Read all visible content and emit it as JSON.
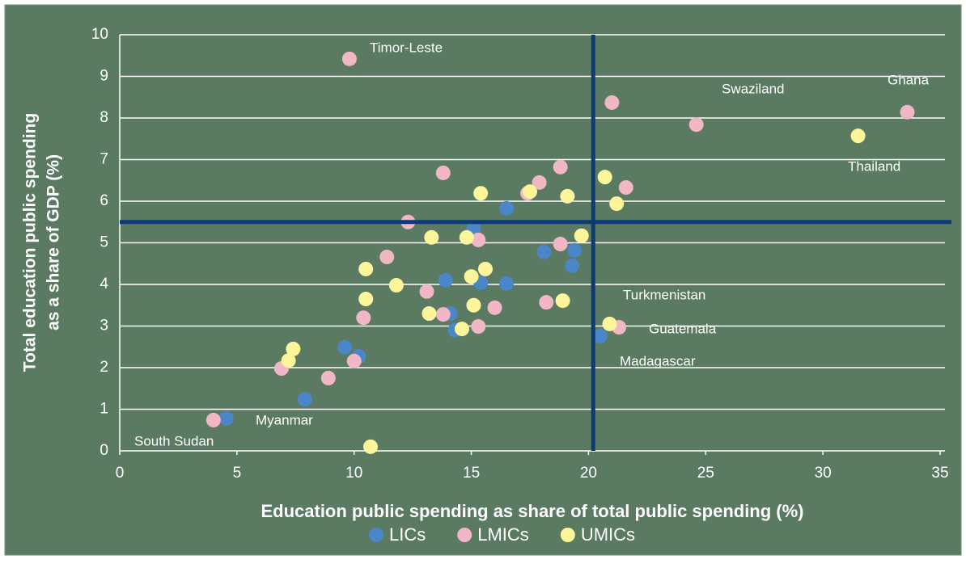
{
  "chart_data": {
    "type": "scatter",
    "xlabel": "Education public spending as share of total public spending (%)",
    "ylabel": [
      "Total education public spending",
      "as a share of GDP (%)"
    ],
    "xlim": [
      0,
      35
    ],
    "xticks": [
      0,
      5,
      10,
      15,
      20,
      25,
      30,
      35
    ],
    "ylim": [
      0,
      10
    ],
    "yticks": [
      0,
      1,
      2,
      3,
      4,
      5,
      6,
      7,
      8,
      9,
      10
    ],
    "grid": true,
    "reference_lines": {
      "x": 20.2,
      "y": 5.5,
      "color": "#0d3a73"
    },
    "legend": "bottom",
    "series": [
      {
        "name": "LICs",
        "color": "#4a86c8",
        "x": [
          4.55,
          7.9,
          9.6,
          10.2,
          15.1,
          16.5,
          13.9,
          14.1,
          14.3,
          15.4,
          16.5,
          18.1,
          19.4,
          19.3,
          20.5
        ],
        "values": [
          0.78,
          1.24,
          2.49,
          2.27,
          5.34,
          5.83,
          4.1,
          3.3,
          2.9,
          4.04,
          4.02,
          4.78,
          4.82,
          4.45,
          2.76
        ]
      },
      {
        "name": "LMICs",
        "color": "#f2b7c4",
        "x": [
          4.0,
          6.9,
          8.9,
          10.0,
          10.4,
          9.8,
          12.3,
          11.4,
          13.1,
          13.8,
          13.8,
          15.3,
          15.3,
          16.0,
          17.4,
          17.9,
          18.8,
          18.8,
          18.2,
          21.0,
          21.6,
          21.3,
          24.6,
          33.6
        ],
        "values": [
          0.74,
          1.98,
          1.75,
          2.16,
          3.2,
          9.42,
          5.5,
          4.66,
          3.83,
          3.28,
          6.68,
          5.07,
          2.99,
          3.44,
          6.19,
          6.45,
          6.82,
          4.97,
          3.57,
          8.37,
          6.33,
          2.97,
          7.84,
          8.14
        ]
      },
      {
        "name": "UMICs",
        "color": "#fdf59a",
        "x": [
          10.7,
          7.4,
          7.2,
          10.5,
          10.5,
          11.8,
          13.3,
          13.2,
          14.8,
          15.0,
          15.1,
          14.6,
          15.6,
          15.4,
          17.5,
          19.1,
          18.9,
          19.7,
          20.7,
          21.2,
          20.9,
          31.5
        ],
        "values": [
          0.1,
          2.45,
          2.17,
          4.37,
          3.65,
          3.98,
          5.13,
          3.3,
          5.13,
          4.19,
          3.5,
          2.93,
          4.37,
          6.19,
          6.23,
          6.12,
          3.61,
          5.17,
          6.58,
          5.94,
          3.05,
          7.57
        ]
      }
    ],
    "annotations": [
      "Timor-Leste",
      "Swaziland",
      "Ghana",
      "Thailand",
      "Turkmenistan",
      "Guatemala",
      "Madagascar",
      "Myanmar",
      "South Sudan"
    ]
  }
}
